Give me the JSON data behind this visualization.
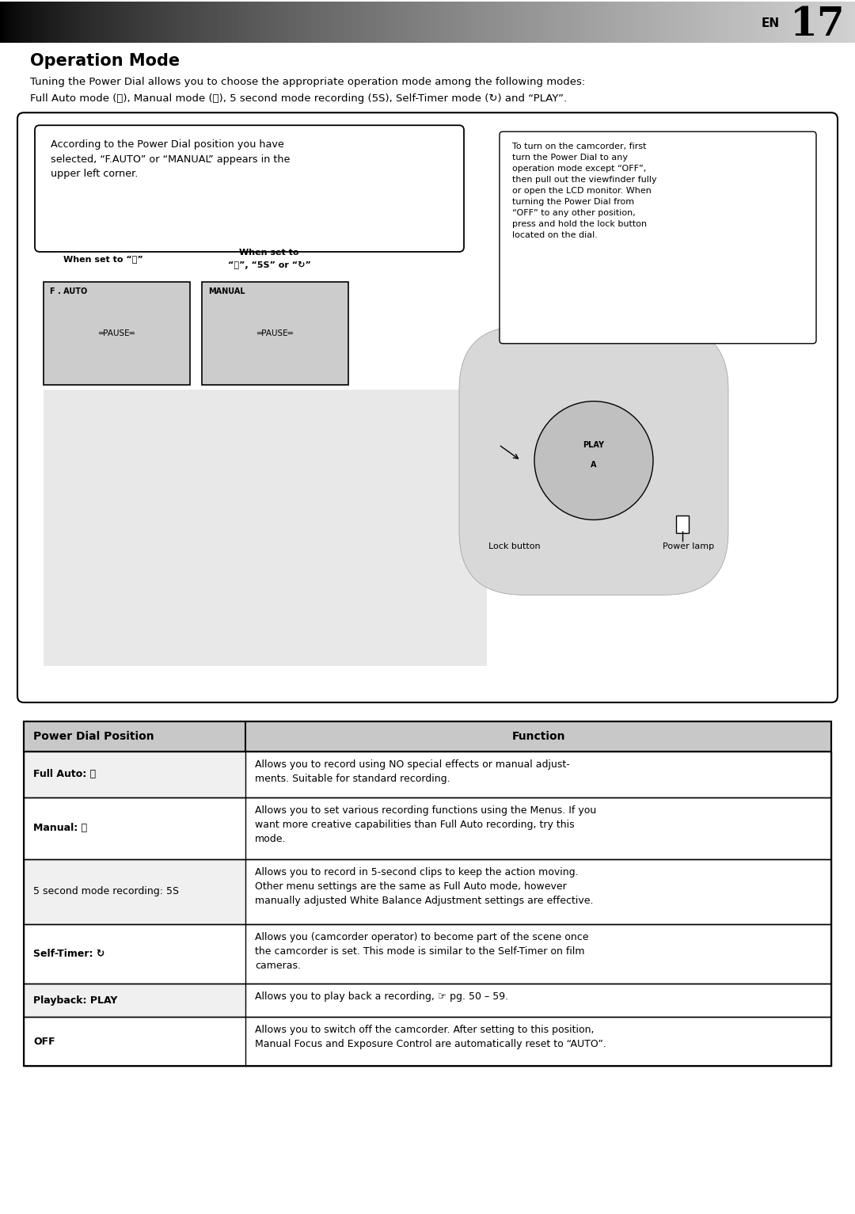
{
  "bg_color": "#ffffff",
  "title": "Operation Mode",
  "intro_line1": "Tuning the Power Dial allows you to choose the appropriate operation mode among the following modes:",
  "intro_line2": "Full Auto mode (Ⓐ), Manual mode (Ⓜ), 5 second mode recording (5S), Self-Timer mode (↻) and “PLAY”.",
  "box_note": "According to the Power Dial position you have\nselected, “F.AUTO” or “MANUAL” appears in the\nupper left corner.",
  "when_a_label": "When set to “Ⓐ”",
  "when_m_label1": "When set to",
  "when_m_label2": "“Ⓜ”, “5S” or “↻”",
  "fauto_screen_label": "F . AUTO",
  "manual_screen_label": "MANUAL",
  "pause_text": "═PAUSE═",
  "camcorder_note": "To turn on the camcorder, first\nturn the Power Dial to any\noperation mode except “OFF”,\nthen pull out the viewfinder fully\nor open the LCD monitor. When\nturning the Power Dial from\n“OFF” to any other position,\npress and hold the lock button\nlocated on the dial.",
  "lock_button_label": "Lock button",
  "power_lamp_label": "Power lamp",
  "table_header_col1": "Power Dial Position",
  "table_header_col2": "Function",
  "table_rows": [
    {
      "col1": "Full Auto: Ⓐ",
      "col2": "Allows you to record using NO special effects or manual adjust-\nments. Suitable for standard recording.",
      "col1_bold": true
    },
    {
      "col1": "Manual: Ⓜ",
      "col2": "Allows you to set various recording functions using the Menus. If you\nwant more creative capabilities than Full Auto recording, try this\nmode.",
      "col1_bold": true
    },
    {
      "col1": "5 second mode recording: 5S",
      "col2": "Allows you to record in 5-second clips to keep the action moving.\nOther menu settings are the same as Full Auto mode, however\nmanually adjusted White Balance Adjustment settings are effective.",
      "col1_bold": false
    },
    {
      "col1": "Self-Timer: ↻",
      "col2": "Allows you (camcorder operator) to become part of the scene once\nthe camcorder is set. This mode is similar to the Self-Timer on film\ncameras.",
      "col1_bold": true
    },
    {
      "col1": "Playback: PLAY",
      "col2": "Allows you to play back a recording, ☞ pg. 50 – 59.",
      "col1_bold": true
    },
    {
      "col1": "OFF",
      "col2": "Allows you to switch off the camcorder. After setting to this position,\nManual Focus and Exposure Control are automatically reset to “AUTO”.",
      "col1_bold": true
    }
  ]
}
